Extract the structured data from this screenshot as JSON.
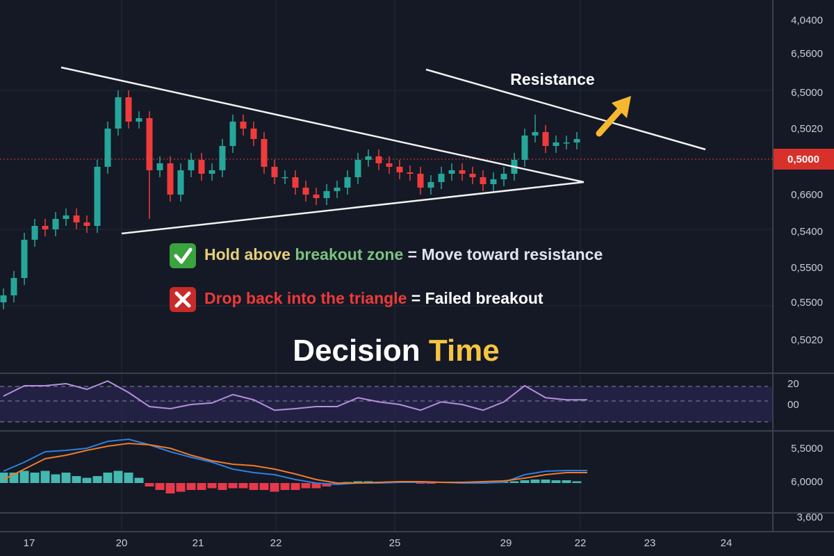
{
  "price_panel": {
    "ylim": [
      0,
      53.5
    ],
    "up_color": "#26a69a",
    "down_color": "#ef3b3b",
    "candles": {
      "open": [
        10.0,
        11.0,
        13.5,
        19.0,
        21.0,
        20.5,
        22.0,
        22.5,
        21.5,
        21.0,
        29.5,
        35.0,
        39.5,
        36.0,
        36.5,
        29.0,
        30.0,
        25.5,
        29.0,
        30.5,
        28.5,
        29.0,
        32.5,
        36.0,
        35.0,
        33.5,
        29.5,
        28.0,
        28.0,
        26.5,
        25.5,
        25.0,
        26.0,
        26.5,
        28.0,
        30.5,
        31.0,
        30.0,
        29.5,
        28.7,
        28.5,
        26.5,
        27.3,
        28.5,
        29.0,
        28.5,
        28.0,
        27.0,
        27.7,
        28.5,
        30.5,
        34.0,
        34.5,
        32.5,
        33.0,
        33.0
      ],
      "high": [
        12.0,
        14.5,
        20.0,
        22.0,
        22.0,
        23.0,
        23.5,
        23.5,
        22.5,
        30.5,
        36.0,
        40.5,
        40.5,
        37.5,
        37.5,
        31.0,
        31.0,
        30.0,
        31.5,
        31.5,
        30.0,
        33.5,
        37.0,
        37.0,
        36.0,
        34.5,
        30.5,
        29.0,
        29.0,
        27.5,
        26.5,
        27.0,
        27.5,
        29.0,
        31.5,
        32.0,
        32.0,
        31.0,
        30.5,
        29.7,
        29.5,
        28.3,
        29.5,
        30.0,
        30.0,
        29.5,
        29.0,
        28.7,
        29.5,
        31.5,
        35.0,
        37.0,
        35.5,
        34.0,
        34.0,
        34.5
      ],
      "low": [
        9.0,
        10.0,
        12.5,
        18.0,
        19.5,
        19.5,
        21.0,
        20.5,
        20.0,
        20.0,
        28.5,
        34.0,
        35.0,
        35.0,
        22.0,
        28.0,
        24.5,
        24.5,
        28.0,
        27.5,
        27.5,
        28.0,
        31.5,
        34.0,
        32.5,
        28.5,
        27.0,
        27.0,
        25.5,
        24.5,
        24.0,
        24.0,
        25.0,
        25.5,
        27.0,
        29.5,
        29.0,
        28.5,
        27.7,
        27.5,
        25.5,
        25.5,
        26.3,
        27.5,
        27.5,
        27.0,
        26.0,
        26.0,
        26.7,
        27.5,
        29.5,
        33.0,
        31.5,
        31.5,
        32.0,
        32.0
      ],
      "close": [
        11.0,
        13.5,
        19.0,
        21.0,
        20.5,
        22.0,
        22.5,
        21.5,
        21.0,
        29.5,
        35.0,
        39.5,
        36.0,
        36.5,
        29.0,
        30.0,
        25.5,
        29.0,
        30.5,
        28.5,
        29.0,
        32.5,
        36.0,
        35.0,
        33.5,
        29.5,
        28.0,
        28.0,
        26.5,
        25.5,
        25.0,
        26.0,
        26.5,
        28.0,
        30.5,
        31.0,
        30.0,
        29.5,
        28.7,
        28.5,
        26.5,
        27.3,
        28.5,
        29.0,
        28.5,
        28.0,
        27.0,
        27.7,
        28.5,
        30.5,
        34.0,
        34.5,
        32.5,
        33.0,
        33.0,
        33.5
      ]
    },
    "axis_labels": [
      "4,0400",
      "6,5600",
      "6,5000",
      "0,5020",
      "0,6600",
      "0,5400",
      "0,5500",
      "0,5500",
      "0,5020"
    ],
    "current_price_label": "0,5000"
  },
  "annotations": {
    "resistance": "Resistance",
    "hold": [
      "Hold above",
      "breakout zone",
      "= Move  toward resistance"
    ],
    "drop": [
      "Drop back into the triangle",
      "= Failed breakout"
    ],
    "headline": [
      "Decision",
      "Time"
    ]
  },
  "rsi_panel": {
    "ylim": [
      0,
      100
    ],
    "color": "#b58ee0",
    "values": [
      60,
      80,
      80,
      84,
      73,
      89,
      67,
      40,
      36,
      44,
      47,
      63,
      53,
      33,
      36,
      40,
      40,
      57,
      49,
      44,
      33,
      49,
      44,
      33,
      49,
      80,
      57,
      53,
      53
    ],
    "axis_labels": [
      "20",
      "00"
    ]
  },
  "macd_panel": {
    "ylim": [
      -0.8,
      1.4
    ],
    "macd_color": "#2f7fe0",
    "signal_color": "#f07a2a",
    "macd": [
      0.34,
      0.6,
      0.9,
      0.94,
      1.0,
      1.2,
      1.26,
      1.1,
      0.9,
      0.74,
      0.6,
      0.4,
      0.3,
      0.24,
      0.1,
      0,
      -0.04,
      0,
      0,
      0.02,
      0.02,
      0.02,
      0,
      0,
      0.02,
      0.24,
      0.34,
      0.36,
      0.36
    ],
    "signal": [
      0.1,
      0.4,
      0.7,
      0.8,
      0.94,
      1.06,
      1.14,
      1.1,
      1.0,
      0.8,
      0.64,
      0.54,
      0.5,
      0.4,
      0.26,
      0.1,
      0,
      0,
      0.02,
      0.04,
      0.04,
      0.02,
      0.02,
      0.04,
      0.06,
      0.14,
      0.24,
      0.3,
      0.3
    ],
    "histogram": [
      0.3,
      0.3,
      0.35,
      0.3,
      0.35,
      0.25,
      0.3,
      0.2,
      0.15,
      0.2,
      0.3,
      0.35,
      0.3,
      0.15,
      -0.1,
      -0.2,
      -0.3,
      -0.25,
      -0.2,
      -0.2,
      -0.15,
      -0.2,
      -0.15,
      -0.15,
      -0.2,
      -0.2,
      -0.25,
      -0.2,
      -0.2,
      -0.15,
      -0.15,
      -0.1,
      -0.05,
      0.03,
      0.05,
      0.05,
      0.03,
      0.03,
      0.02,
      0.02,
      -0.02,
      -0.02,
      0.02,
      0.03,
      0.02,
      -0.02,
      -0.02,
      0.02,
      0.03,
      0.05,
      0.08,
      0.1,
      0.1,
      0.08,
      0.08,
      0.05
    ],
    "hist_up_color": "#45b8b0",
    "hist_down_color": "#e8394a",
    "axis_labels": [
      "5,5000",
      "6,0000",
      "3,600"
    ]
  },
  "time_axis": [
    "17",
    "20",
    "21",
    "22",
    "25",
    "29",
    "22",
    "23",
    "24"
  ]
}
